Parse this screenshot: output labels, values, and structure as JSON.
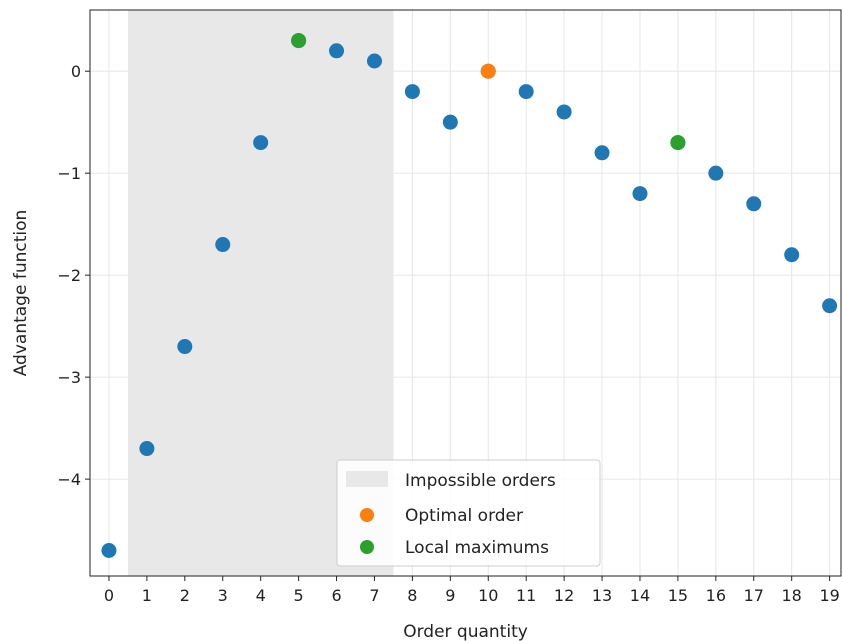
{
  "chart_data": {
    "type": "scatter",
    "title": "",
    "xlabel": "Order quantity",
    "ylabel": "Advantage function",
    "xlim": [
      -0.5,
      19.3
    ],
    "ylim": [
      -4.95,
      0.6
    ],
    "x_ticks": [
      0,
      1,
      2,
      3,
      4,
      5,
      6,
      7,
      8,
      9,
      10,
      11,
      12,
      13,
      14,
      15,
      16,
      17,
      18,
      19
    ],
    "y_ticks": [
      0,
      -1,
      -2,
      -3,
      -4
    ],
    "y_tick_labels": [
      "0",
      "−1",
      "−2",
      "−3",
      "−4"
    ],
    "grid": true,
    "legend_position": "bottom-center",
    "shaded_region": {
      "label": "Impossible orders",
      "x_start": 0.5,
      "x_end": 7.5,
      "color": "#e8e8e8"
    },
    "points": {
      "x": [
        0,
        1,
        2,
        3,
        4,
        5,
        6,
        7,
        8,
        9,
        10,
        11,
        12,
        13,
        14,
        15,
        16,
        17,
        18,
        19
      ],
      "y": [
        -4.7,
        -3.7,
        -2.7,
        -1.7,
        -0.7,
        0.3,
        0.2,
        0.1,
        -0.2,
        -0.5,
        0.0,
        -0.2,
        -0.4,
        -0.8,
        -1.2,
        -0.7,
        -1.0,
        -1.3,
        -1.8,
        -2.3
      ],
      "color": "#1f77b4"
    },
    "series": [
      {
        "name": "Optimal order",
        "x": [
          10
        ],
        "y": [
          0.0
        ],
        "color": "#ff7f0e"
      },
      {
        "name": "Local maximums",
        "x": [
          5,
          15
        ],
        "y": [
          0.3,
          -0.7
        ],
        "color": "#2ca02c"
      }
    ]
  }
}
